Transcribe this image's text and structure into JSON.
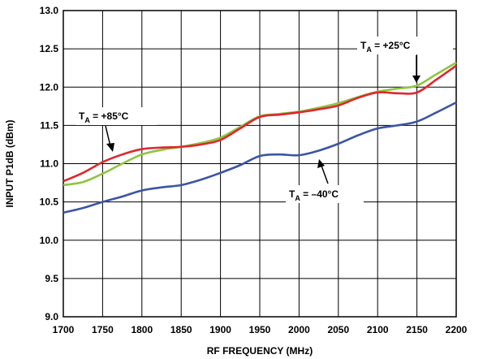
{
  "chart_data": {
    "type": "line",
    "xlabel": "RF FREQUENCY (MHz)",
    "ylabel": "INPUT P1dB (dBm)",
    "xlim": [
      1700,
      2200
    ],
    "ylim": [
      9.0,
      13.0
    ],
    "xticks": [
      1700,
      1750,
      1800,
      1850,
      1900,
      1950,
      2000,
      2050,
      2100,
      2150,
      2200
    ],
    "yticks": [
      "9.0",
      "9.5",
      "10.0",
      "10.5",
      "11.0",
      "11.5",
      "12.0",
      "12.5",
      "13.0"
    ],
    "grid": true,
    "x": [
      1700,
      1725,
      1750,
      1775,
      1800,
      1825,
      1850,
      1875,
      1900,
      1925,
      1950,
      1975,
      2000,
      2025,
      2050,
      2075,
      2100,
      2125,
      2150,
      2175,
      2200
    ],
    "series": [
      {
        "key": "plus85",
        "color": "#e0262d",
        "values": [
          10.77,
          10.88,
          11.02,
          11.12,
          11.19,
          11.21,
          11.22,
          11.25,
          11.31,
          11.46,
          11.61,
          11.64,
          11.67,
          11.71,
          11.76,
          11.86,
          11.93,
          11.92,
          11.93,
          12.1,
          12.28
        ]
      },
      {
        "key": "plus25",
        "color": "#8dc63f",
        "values": [
          10.72,
          10.76,
          10.87,
          11.0,
          11.12,
          11.18,
          11.22,
          11.27,
          11.34,
          11.48,
          11.62,
          11.65,
          11.68,
          11.73,
          11.79,
          11.87,
          11.94,
          11.98,
          12.02,
          12.17,
          12.32
        ]
      },
      {
        "key": "minus40",
        "color": "#3b55a4",
        "values": [
          10.36,
          10.42,
          10.5,
          10.57,
          10.65,
          10.69,
          10.72,
          10.79,
          10.88,
          10.98,
          11.1,
          11.12,
          11.11,
          11.17,
          11.26,
          11.37,
          11.46,
          11.5,
          11.55,
          11.67,
          11.8
        ]
      }
    ],
    "annotations": [
      {
        "key": "ann_plus25",
        "t": "T",
        "sub": "A",
        "rest": " = +25°C"
      },
      {
        "key": "ann_plus85",
        "t": "T",
        "sub": "A",
        "rest": " = +85°C"
      },
      {
        "key": "ann_minus40",
        "t": "T",
        "sub": "A",
        "rest": " = –40°C"
      }
    ]
  }
}
